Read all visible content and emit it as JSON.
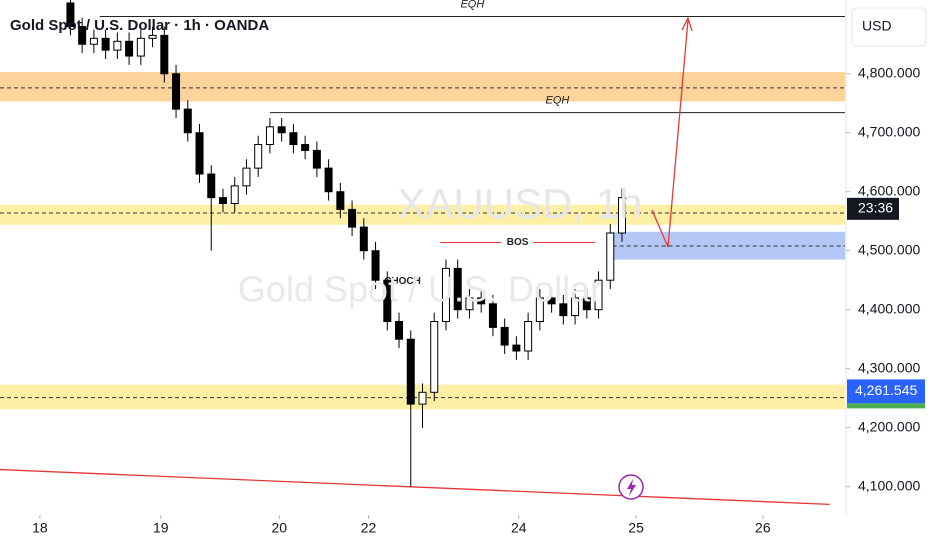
{
  "chart_data": {
    "type": "candlestick",
    "title": "Gold Spot / U.S. Dollar · 1h · OANDA",
    "watermark": "XAUUSD, 1h",
    "watermark_subtitle": "Gold Spot / U.S. Dollar",
    "currency": "USD",
    "countdown": "23:36",
    "countdown_level": 4571,
    "last_price": {
      "value": 4261.545,
      "label": "4,261.545"
    },
    "xlim": [
      0,
      72
    ],
    "ylim": [
      4052,
      4925
    ],
    "yticks": [
      {
        "value": 4100,
        "label": "4,100.000"
      },
      {
        "value": 4200,
        "label": "4,200.000"
      },
      {
        "value": 4300,
        "label": "4,300.000"
      },
      {
        "value": 4400,
        "label": "4,400.000"
      },
      {
        "value": 4500,
        "label": "4,500.000"
      },
      {
        "value": 4600,
        "label": "4,600.000"
      },
      {
        "value": 4700,
        "label": "4,700.000"
      },
      {
        "value": 4800,
        "label": "4,800.000"
      }
    ],
    "xticks": [
      {
        "value": 3.4,
        "label": "18"
      },
      {
        "value": 13.7,
        "label": "19"
      },
      {
        "value": 23.8,
        "label": "20"
      },
      {
        "value": 31.4,
        "label": "22"
      },
      {
        "value": 44.2,
        "label": "24"
      },
      {
        "value": 54.2,
        "label": "25"
      },
      {
        "value": 65,
        "label": "26"
      }
    ],
    "zones": [
      {
        "from": 4753,
        "to": 4803,
        "mid": 4776,
        "color": "#fbd39b"
      },
      {
        "from": 4544,
        "to": 4578,
        "mid": 4564,
        "color": "#fdf0a6"
      },
      {
        "from": 4231,
        "to": 4273,
        "mid": 4251,
        "color": "#fdf0a6"
      }
    ],
    "target_box": {
      "from": 4485,
      "to": 4532,
      "mid": 4508,
      "x0": 52.2,
      "color": "#b3c8f7"
    },
    "levels": [
      {
        "label": "EQH",
        "value": 4897,
        "x0": 8.5
      },
      {
        "label": "EQH",
        "value": 4734,
        "x0": 23
      }
    ],
    "bos": {
      "label": "BOS",
      "value": 4514,
      "x0": 37.5,
      "x1": 50.7
    },
    "choch": {
      "label": "CHOCH",
      "value": 4448,
      "x": 34.3
    },
    "candles": {
      "x": [
        6,
        7,
        8,
        9,
        10,
        11,
        12,
        13,
        14,
        15,
        16,
        17,
        18,
        19,
        20,
        21,
        22,
        23,
        24,
        25,
        26,
        27,
        28,
        29,
        30,
        31,
        32,
        33,
        34,
        35,
        36,
        37,
        38,
        39,
        40,
        41,
        42,
        43,
        44,
        45,
        46,
        47,
        48,
        49,
        50,
        51,
        52,
        53
      ],
      "open": [
        4920,
        4880,
        4850,
        4860,
        4840,
        4855,
        4830,
        4860,
        4865,
        4800,
        4740,
        4700,
        4630,
        4590,
        4580,
        4610,
        4640,
        4680,
        4710,
        4700,
        4680,
        4670,
        4640,
        4600,
        4570,
        4540,
        4500,
        4450,
        4380,
        4350,
        4240,
        4260,
        4380,
        4470,
        4400,
        4420,
        4410,
        4370,
        4340,
        4330,
        4380,
        4420,
        4410,
        4390,
        4420,
        4400,
        4450,
        4530
      ],
      "high": [
        4935,
        4895,
        4875,
        4875,
        4870,
        4870,
        4875,
        4880,
        4880,
        4815,
        4755,
        4715,
        4645,
        4605,
        4625,
        4655,
        4695,
        4725,
        4725,
        4715,
        4695,
        4685,
        4655,
        4615,
        4585,
        4555,
        4515,
        4465,
        4395,
        4365,
        4275,
        4395,
        4485,
        4485,
        4435,
        4435,
        4425,
        4385,
        4355,
        4395,
        4435,
        4435,
        4425,
        4435,
        4435,
        4465,
        4545,
        4605
      ],
      "low": [
        4865,
        4835,
        4835,
        4825,
        4825,
        4815,
        4815,
        4845,
        4785,
        4725,
        4685,
        4615,
        4500,
        4565,
        4565,
        4595,
        4625,
        4665,
        4685,
        4665,
        4655,
        4625,
        4585,
        4555,
        4525,
        4485,
        4435,
        4365,
        4335,
        4100,
        4200,
        4245,
        4365,
        4385,
        4385,
        4395,
        4355,
        4325,
        4315,
        4315,
        4365,
        4395,
        4375,
        4375,
        4385,
        4385,
        4435,
        4515
      ],
      "close": [
        4880,
        4850,
        4860,
        4840,
        4855,
        4830,
        4860,
        4865,
        4800,
        4740,
        4700,
        4630,
        4590,
        4580,
        4610,
        4640,
        4680,
        4710,
        4700,
        4680,
        4670,
        4640,
        4600,
        4570,
        4540,
        4500,
        4450,
        4380,
        4350,
        4240,
        4260,
        4380,
        4470,
        4400,
        4420,
        4410,
        4370,
        4340,
        4330,
        4380,
        4420,
        4410,
        4390,
        4420,
        4400,
        4450,
        4530,
        4590
      ]
    },
    "trendline": {
      "x": [
        0,
        70.7
      ],
      "y": [
        4129,
        4070
      ],
      "color": "#e53935"
    }
  }
}
